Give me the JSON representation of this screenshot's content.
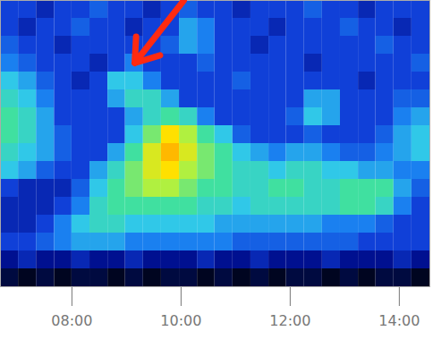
{
  "chart_data": {
    "type": "heatmap",
    "x_bins": [
      6.69,
      7.02,
      7.35,
      7.68,
      8.0,
      8.33,
      8.66,
      8.98,
      9.31,
      9.64,
      9.97,
      10.3,
      10.62,
      10.95,
      11.28,
      11.61,
      11.93,
      12.26,
      12.59,
      12.92,
      13.25,
      13.57,
      13.9,
      14.23,
      14.56
    ],
    "y_bins": [
      16,
      15,
      14,
      13,
      12,
      11,
      10,
      9,
      8,
      7,
      6,
      5,
      4,
      3,
      2,
      1,
      0
    ],
    "z": [
      [
        3,
        3,
        2.5,
        3,
        3,
        3.5,
        3,
        3,
        2.5,
        3,
        3.5,
        3,
        3,
        2.5,
        3,
        3,
        3,
        3.5,
        3,
        3,
        2.5,
        3,
        3,
        3
      ],
      [
        3,
        2.5,
        3,
        3,
        3.5,
        3,
        3,
        2.5,
        3,
        3,
        4.5,
        4,
        3,
        3,
        3,
        2.5,
        3,
        3,
        3,
        3.5,
        3,
        3,
        2.5,
        3
      ],
      [
        3.5,
        3,
        3,
        2.5,
        3,
        3,
        3,
        3,
        3,
        3.5,
        4.5,
        4,
        3,
        3,
        2.5,
        3,
        3,
        3,
        3,
        3,
        3,
        3.5,
        3,
        3
      ],
      [
        4,
        3.5,
        3,
        3,
        3,
        2.5,
        3,
        4,
        3,
        3,
        3,
        3.5,
        3,
        3,
        3,
        3,
        3,
        2.5,
        3,
        3,
        3,
        3,
        3,
        3.5
      ],
      [
        5,
        4.5,
        3.5,
        3,
        2.5,
        3,
        5,
        5,
        4,
        3,
        3,
        3,
        3,
        3.5,
        3,
        3,
        3,
        3,
        3,
        3,
        2.5,
        3,
        3,
        3
      ],
      [
        5.5,
        5,
        4,
        3,
        3,
        3,
        4.5,
        5.5,
        5.5,
        4.5,
        3,
        3,
        3,
        3,
        3,
        3,
        3,
        4.5,
        4.5,
        3,
        3,
        3,
        3.5,
        3.5
      ],
      [
        6,
        5.5,
        4.5,
        3,
        3,
        3,
        3,
        4.5,
        5.5,
        6,
        5.5,
        4,
        3,
        3,
        3,
        3,
        3.5,
        5,
        4.5,
        3,
        3,
        3,
        4,
        4.5
      ],
      [
        6,
        5.5,
        4.5,
        3.5,
        3,
        3,
        3,
        5,
        6.5,
        8,
        7,
        6,
        5,
        3.5,
        3,
        3,
        3,
        3.5,
        3,
        3,
        3,
        3.5,
        4.5,
        5
      ],
      [
        5.5,
        5,
        4.5,
        3.5,
        3,
        3,
        4.5,
        6,
        7.5,
        8.5,
        7.5,
        6.5,
        6,
        5,
        4.5,
        4,
        4.5,
        4.5,
        4,
        3.5,
        3.5,
        4,
        4.5,
        5
      ],
      [
        5,
        4.5,
        3.5,
        3,
        3,
        4.5,
        5.5,
        6.5,
        7.5,
        8,
        7,
        6.5,
        6,
        5.5,
        5.5,
        5,
        5.5,
        5.5,
        5,
        5,
        4.5,
        4.5,
        4,
        4
      ],
      [
        3,
        2.5,
        2.5,
        2.5,
        3.5,
        5,
        6,
        6.5,
        7,
        7,
        6.5,
        6,
        6,
        5.5,
        5.5,
        6,
        6,
        5.5,
        5.5,
        6,
        6,
        6,
        4.5,
        3.5
      ],
      [
        2.5,
        2.5,
        2.5,
        3,
        4,
        5.5,
        6,
        6,
        6,
        6,
        6,
        5.5,
        5.5,
        5,
        5.5,
        5.5,
        5.5,
        5.5,
        5.5,
        6,
        6,
        5.5,
        4,
        3
      ],
      [
        2.5,
        2.5,
        3,
        4,
        5,
        5.5,
        5.5,
        5,
        5,
        5,
        5,
        5,
        4.5,
        4.5,
        4.5,
        4.5,
        4.5,
        4.5,
        4,
        4,
        4,
        3.5,
        3,
        3
      ],
      [
        3,
        3,
        3.5,
        4,
        4.5,
        4.5,
        4.5,
        4,
        4,
        4,
        4,
        4,
        4,
        3.5,
        3.5,
        3.5,
        3.5,
        3.5,
        3.5,
        3.5,
        3,
        3,
        3,
        3
      ],
      [
        2,
        2.5,
        2,
        2,
        2.5,
        2,
        2,
        2.5,
        2,
        2,
        2,
        2.5,
        2,
        2,
        2.5,
        2,
        2,
        2,
        2.5,
        2,
        2,
        2,
        2.5,
        2
      ],
      [
        1,
        0.5,
        1,
        0.5,
        1,
        1,
        0.5,
        1,
        0.5,
        1,
        1,
        0.5,
        1,
        0.5,
        1,
        0.5,
        1,
        1,
        0.5,
        1,
        0.5,
        1,
        1,
        0.5
      ]
    ],
    "zlim": [
      0,
      10
    ],
    "xlim": [
      6.69,
      14.56
    ],
    "ylim": [
      0,
      16
    ],
    "xticks": [
      {
        "value": 8,
        "label": "08:00"
      },
      {
        "value": 10,
        "label": "10:00"
      },
      {
        "value": 12,
        "label": "12:00"
      },
      {
        "value": 14,
        "label": "14:00"
      }
    ],
    "tick_labels": "x",
    "arrow": {
      "x1": 10.05,
      "y1": 16,
      "x2": 9.15,
      "y2": 12.5,
      "color": "#ff2a10"
    }
  }
}
